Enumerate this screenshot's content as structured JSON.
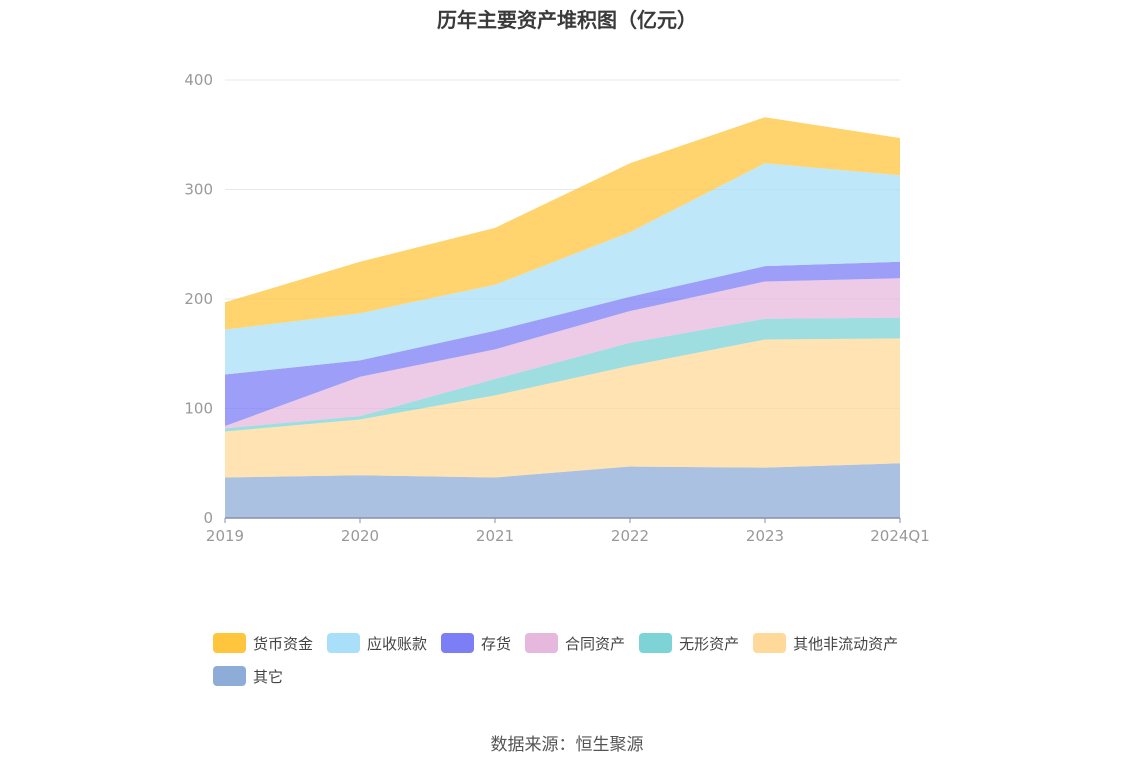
{
  "chart_data": {
    "type": "area",
    "title": "历年主要资产堆积图（亿元）",
    "categories": [
      "2019",
      "2020",
      "2021",
      "2022",
      "2023",
      "2024Q1"
    ],
    "ylim": [
      0,
      400
    ],
    "yticks": [
      "0",
      "100",
      "200",
      "300",
      "400"
    ],
    "stacked": true,
    "grid": true,
    "legend_position": "bottom",
    "series": [
      {
        "name": "其它",
        "color": "#8eacd8",
        "values": [
          37,
          39,
          37,
          47,
          46,
          50
        ]
      },
      {
        "name": "其他非流动资产",
        "color": "#ffd99a",
        "values": [
          42,
          51,
          75,
          92,
          117,
          114
        ]
      },
      {
        "name": "无形资产",
        "color": "#7dd3d6",
        "values": [
          3,
          3,
          15,
          21,
          19,
          19
        ]
      },
      {
        "name": "合同资产",
        "color": "#e7b8dd",
        "values": [
          2,
          36,
          27,
          29,
          34,
          36
        ]
      },
      {
        "name": "存货",
        "color": "#7b7ef4",
        "values": [
          47,
          15,
          17,
          13,
          14,
          15
        ]
      },
      {
        "name": "应收账款",
        "color": "#a9dff8",
        "values": [
          41,
          43,
          42,
          59,
          94,
          79
        ]
      },
      {
        "name": "货币资金",
        "color": "#ffc53d",
        "values": [
          25,
          47,
          52,
          63,
          42,
          34
        ]
      }
    ],
    "legend_order": [
      "货币资金",
      "应收账款",
      "存货",
      "合同资产",
      "无形资产",
      "其他非流动资产",
      "其它"
    ]
  },
  "source": "数据来源：恒生聚源"
}
